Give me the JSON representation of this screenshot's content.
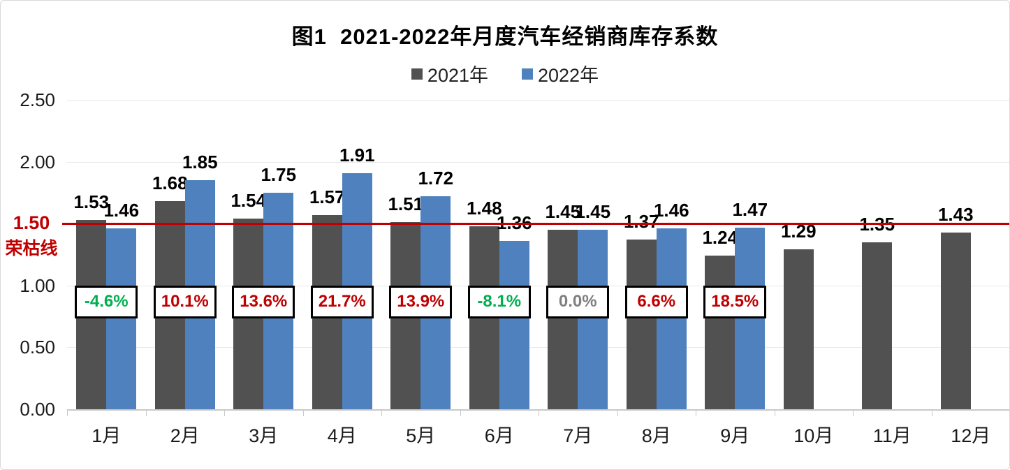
{
  "chart_data": {
    "type": "bar",
    "title": "图1  2021-2022年月度汽车经销商库存系数",
    "categories": [
      "1月",
      "2月",
      "3月",
      "4月",
      "5月",
      "6月",
      "7月",
      "8月",
      "9月",
      "10月",
      "11月",
      "12月"
    ],
    "series": [
      {
        "name": "2021年",
        "color": "#515151",
        "values": [
          1.53,
          1.68,
          1.54,
          1.57,
          1.51,
          1.48,
          1.45,
          1.37,
          1.24,
          1.29,
          1.35,
          1.43
        ]
      },
      {
        "name": "2022年",
        "color": "#4E81BD",
        "values": [
          1.46,
          1.85,
          1.75,
          1.91,
          1.72,
          1.36,
          1.45,
          1.46,
          1.47,
          null,
          null,
          null
        ]
      }
    ],
    "yoy_changes": [
      {
        "label": "-4.6%",
        "tone": "negative"
      },
      {
        "label": "10.1%",
        "tone": "positive"
      },
      {
        "label": "13.6%",
        "tone": "positive"
      },
      {
        "label": "21.7%",
        "tone": "positive"
      },
      {
        "label": "13.9%",
        "tone": "positive"
      },
      {
        "label": "-8.1%",
        "tone": "negative"
      },
      {
        "label": "0.0%",
        "tone": "zero"
      },
      {
        "label": "6.6%",
        "tone": "positive"
      },
      {
        "label": "18.5%",
        "tone": "positive"
      }
    ],
    "tone_colors": {
      "positive": "#C00000",
      "negative": "#00B050",
      "zero": "#7F7F7F"
    },
    "reference_line": {
      "value": 1.5,
      "tick_label": "1.50",
      "label": "荣枯线",
      "color": "#C00000"
    },
    "ylim": [
      0,
      2.5
    ],
    "yticks": [
      "2.50",
      "2.00",
      "1.50",
      "1.00",
      "0.50",
      "0.00"
    ],
    "grid": true,
    "legend_position": "top",
    "value_label_format": "0.00"
  }
}
